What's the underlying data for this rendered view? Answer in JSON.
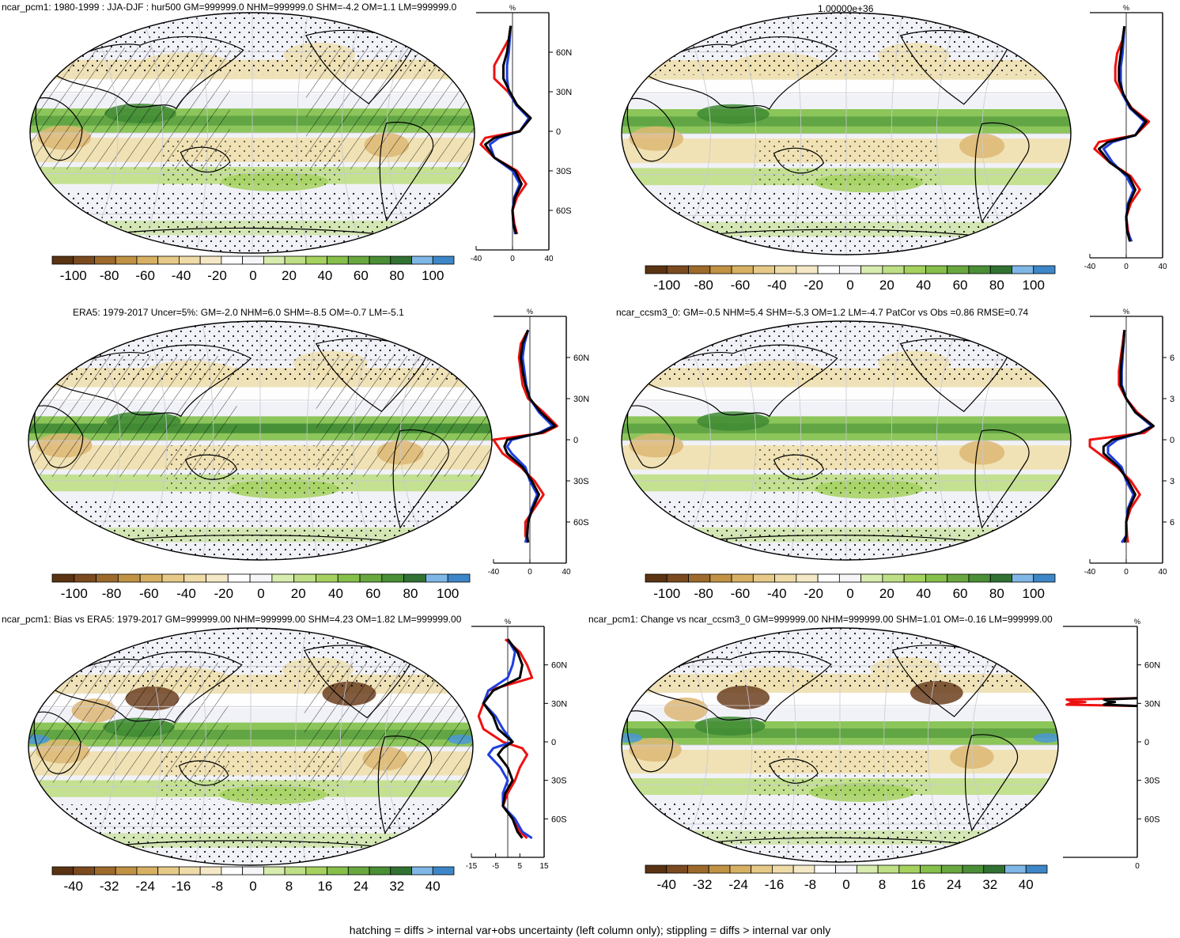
{
  "footnote": "hatching = diffs > internal var+obs uncertainty (left column only); stippling = diffs > internal var only",
  "palette": {
    "rh": [
      "#5a3412",
      "#7c4a1f",
      "#9e6a2c",
      "#c19243",
      "#d7b064",
      "#e6c887",
      "#efdba8",
      "#f4e8c6",
      "#ffffff",
      "#f6f6f9",
      "#d7ecae",
      "#bfdf86",
      "#a5d15f",
      "#86bf4a",
      "#68a83f",
      "#4a8e36",
      "#317233",
      "#7fb7e6",
      "#3d86c8"
    ],
    "map_cool": "#f1f1f8",
    "mid_green": "#8cc55a",
    "dark_green": "#3f8a34",
    "light_tan": "#efe0b0",
    "mid_tan": "#ddb774",
    "dark_brown": "#6b4020",
    "blue_patch": "#4b96d8",
    "line_red": "#ee1111",
    "line_blue": "#1f3fe0",
    "line_black": "#000000"
  },
  "chart_data": [
    {
      "type": "heatmap",
      "title": "ncar_pcm1: 1980-1999 : JJA-DJF : hur500 GM=999999.0 NHM=999999.0 SHM=-4.2 OM=1.1 LM=999999.0",
      "colorbar": {
        "labels": [
          "-100",
          "-80",
          "-60",
          "-40",
          "-20",
          "0",
          "20",
          "40",
          "60",
          "80",
          "100"
        ],
        "range": [
          -100,
          100
        ]
      },
      "zonal_profile": {
        "unit": "%",
        "xlim": [
          -40,
          40
        ],
        "xticks": [
          "-40",
          "0",
          "40"
        ],
        "yticks": [
          "60N",
          "30N",
          "0",
          "30S",
          "60S"
        ],
        "series": [
          {
            "color": "#ee1111",
            "lat": [
              80,
              70,
              60,
              50,
              40,
              30,
              20,
              10,
              0,
              -5,
              -10,
              -20,
              -30,
              -40,
              -50,
              -60,
              -70,
              -78
            ],
            "val": [
              -2,
              -4,
              -12,
              -20,
              -20,
              -5,
              5,
              20,
              8,
              -30,
              -35,
              -20,
              5,
              15,
              5,
              0,
              2,
              5
            ]
          },
          {
            "color": "#1f3fe0",
            "lat": [
              80,
              70,
              60,
              50,
              40,
              30,
              20,
              10,
              0,
              -5,
              -10,
              -20,
              -30,
              -40,
              -50,
              -60,
              -70,
              -78
            ],
            "val": [
              -2,
              -3,
              -4,
              -6,
              -6,
              -4,
              4,
              18,
              8,
              -15,
              -25,
              -20,
              0,
              8,
              2,
              0,
              1,
              3
            ]
          },
          {
            "color": "#000000",
            "lat": [
              80,
              70,
              60,
              50,
              40,
              30,
              20,
              10,
              0,
              -5,
              -10,
              -20,
              -30,
              -40,
              -50,
              -60,
              -70,
              -78
            ],
            "val": [
              -2,
              -4,
              -6,
              -10,
              -10,
              -3,
              5,
              20,
              8,
              -20,
              -30,
              -20,
              3,
              10,
              3,
              0,
              1,
              4
            ]
          }
        ]
      }
    },
    {
      "type": "heatmap",
      "title": "1.00000e+36",
      "colorbar": {
        "labels": [
          "-100",
          "-80",
          "-60",
          "-40",
          "-20",
          "0",
          "20",
          "40",
          "60",
          "80",
          "100"
        ],
        "range": [
          -100,
          100
        ]
      },
      "zonal_profile": {
        "unit": "%",
        "xlim": [
          -40,
          40
        ],
        "xticks": [
          "-40",
          "0",
          "40"
        ],
        "yticks": [],
        "series": [
          {
            "color": "#ee1111",
            "lat": [
              80,
              70,
              60,
              50,
              40,
              30,
              20,
              10,
              0,
              -5,
              -10,
              -20,
              -30,
              -40,
              -50,
              -60,
              -70,
              -78
            ],
            "val": [
              -2,
              -4,
              -10,
              -12,
              -12,
              -4,
              6,
              25,
              10,
              -30,
              -35,
              -18,
              5,
              15,
              5,
              0,
              2,
              5
            ]
          },
          {
            "color": "#1f3fe0",
            "lat": [
              80,
              70,
              60,
              50,
              40,
              30,
              20,
              10,
              0,
              -5,
              -10,
              -20,
              -30,
              -40,
              -50,
              -60,
              -70,
              -78
            ],
            "val": [
              -2,
              -3,
              -4,
              -6,
              -6,
              -4,
              4,
              20,
              10,
              -15,
              -25,
              -15,
              0,
              8,
              2,
              0,
              1,
              6
            ]
          },
          {
            "color": "#000000",
            "lat": [
              80,
              70,
              60,
              50,
              40,
              30,
              20,
              10,
              0,
              -5,
              -10,
              -20,
              -30,
              -40,
              -50,
              -60,
              -70,
              -78
            ],
            "val": [
              -2,
              -4,
              -6,
              -8,
              -8,
              -3,
              5,
              22,
              10,
              -20,
              -30,
              -18,
              3,
              10,
              3,
              0,
              1,
              4
            ]
          }
        ]
      }
    },
    {
      "type": "heatmap",
      "title": "ERA5: 1979-2017 Uncer=5%: GM=-2.0 NHM=6.0 SHM=-8.5 OM=-0.7 LM=-5.1",
      "colorbar": {
        "labels": [
          "-100",
          "-80",
          "-60",
          "-40",
          "-20",
          "0",
          "20",
          "40",
          "60",
          "80",
          "100"
        ],
        "range": [
          -100,
          100
        ]
      },
      "zonal_profile": {
        "unit": "%",
        "xlim": [
          -40,
          40
        ],
        "xticks": [
          "-40",
          "0",
          "40"
        ],
        "yticks": [
          "60N",
          "30N",
          "0",
          "30S",
          "60S"
        ],
        "series": [
          {
            "color": "#ee1111",
            "lat": [
              80,
              70,
              60,
              50,
              40,
              30,
              20,
              10,
              5,
              0,
              -5,
              -10,
              -20,
              -30,
              -40,
              -50,
              -60,
              -70,
              -75
            ],
            "val": [
              -2,
              -10,
              -12,
              -10,
              -8,
              -2,
              15,
              30,
              15,
              -40,
              -35,
              -30,
              -10,
              5,
              15,
              5,
              -5,
              -5,
              -2
            ]
          },
          {
            "color": "#1f3fe0",
            "lat": [
              80,
              70,
              60,
              50,
              40,
              30,
              20,
              10,
              5,
              0,
              -5,
              -10,
              -20,
              -30,
              -40,
              -50,
              -60,
              -70,
              -75
            ],
            "val": [
              -2,
              -6,
              -8,
              -6,
              -4,
              0,
              10,
              25,
              10,
              -20,
              -25,
              -20,
              -5,
              0,
              8,
              2,
              -2,
              -3,
              -5
            ]
          },
          {
            "color": "#000000",
            "lat": [
              80,
              70,
              60,
              50,
              40,
              30,
              20,
              10,
              5,
              0,
              -5,
              -10,
              -20,
              -30,
              -40,
              -50,
              -60,
              -70,
              -75
            ],
            "val": [
              -2,
              -8,
              -10,
              -8,
              -5,
              0,
              12,
              28,
              12,
              -25,
              -28,
              -25,
              -8,
              2,
              10,
              3,
              -2,
              -3,
              -2
            ]
          }
        ]
      }
    },
    {
      "type": "heatmap",
      "title": "ncar_ccsm3_0: GM=-0.5 NHM=5.4 SHM=-5.3 OM=1.2 LM=-4.7 PatCor vs Obs =0.86 RMSE=0.74",
      "colorbar": {
        "labels": [
          "-100",
          "-80",
          "-60",
          "-40",
          "-20",
          "0",
          "20",
          "40",
          "60",
          "80",
          "100"
        ],
        "range": [
          -100,
          100
        ]
      },
      "zonal_profile": {
        "unit": "%",
        "xlim": [
          -40,
          40
        ],
        "xticks": [
          "-40",
          "0",
          "40"
        ],
        "yticks": [
          "6",
          "3",
          "0",
          "3",
          "6"
        ],
        "series": [
          {
            "color": "#ee1111",
            "lat": [
              80,
              70,
              60,
              50,
              40,
              30,
              20,
              10,
              5,
              0,
              -5,
              -10,
              -20,
              -30,
              -40,
              -50,
              -60,
              -70,
              -75
            ],
            "val": [
              -2,
              -4,
              -6,
              -8,
              -8,
              0,
              12,
              30,
              20,
              -40,
              -40,
              -30,
              -10,
              5,
              15,
              5,
              0,
              1,
              2
            ]
          },
          {
            "color": "#1f3fe0",
            "lat": [
              80,
              70,
              60,
              50,
              40,
              30,
              20,
              10,
              5,
              0,
              -5,
              -10,
              -20,
              -30,
              -40,
              -50,
              -60,
              -70,
              -75
            ],
            "val": [
              -2,
              -3,
              -4,
              -5,
              -5,
              0,
              10,
              28,
              15,
              -10,
              -20,
              -20,
              -5,
              0,
              8,
              2,
              0,
              0,
              -5
            ]
          },
          {
            "color": "#000000",
            "lat": [
              80,
              70,
              60,
              50,
              40,
              30,
              20,
              10,
              5,
              0,
              -5,
              -10,
              -20,
              -30,
              -40,
              -50,
              -60,
              -70,
              -75
            ],
            "val": [
              -2,
              -3,
              -5,
              -6,
              -6,
              0,
              10,
              30,
              15,
              -15,
              -25,
              -25,
              -8,
              2,
              10,
              3,
              0,
              0,
              -2
            ]
          }
        ]
      }
    },
    {
      "type": "heatmap",
      "title": "ncar_pcm1: Bias vs ERA5: 1979-2017 GM=999999.00 NHM=999999.00 SHM=4.23 OM=1.82 LM=999999.00",
      "colorbar": {
        "labels": [
          "-40",
          "-32",
          "-24",
          "-16",
          "-8",
          "0",
          "8",
          "16",
          "24",
          "32",
          "40"
        ],
        "range": [
          -40,
          40
        ]
      },
      "zonal_profile": {
        "unit": "%",
        "xlim": [
          -15,
          15
        ],
        "xticks": [
          "-15",
          "-5",
          "5",
          "15"
        ],
        "yticks": [
          "60N",
          "30N",
          "0",
          "30S",
          "60S"
        ],
        "series": [
          {
            "color": "#ee1111",
            "lat": [
              80,
              70,
              60,
              50,
              40,
              30,
              20,
              10,
              0,
              -5,
              -10,
              -20,
              -30,
              -40,
              -50,
              -60,
              -70,
              -75
            ],
            "val": [
              -1,
              5,
              8,
              10,
              -8,
              -10,
              -12,
              -10,
              -2,
              6,
              8,
              5,
              3,
              0,
              -2,
              2,
              5,
              8
            ]
          },
          {
            "color": "#1f3fe0",
            "lat": [
              80,
              70,
              60,
              50,
              40,
              30,
              20,
              10,
              0,
              -5,
              -10,
              -20,
              -30,
              -40,
              -50,
              -60,
              -70,
              -75
            ],
            "val": [
              0,
              3,
              2,
              0,
              -8,
              -10,
              -5,
              -2,
              2,
              -6,
              -8,
              -3,
              0,
              -2,
              -2,
              3,
              6,
              10
            ]
          },
          {
            "color": "#000000",
            "lat": [
              80,
              70,
              60,
              50,
              40,
              30,
              20,
              10,
              0,
              -5,
              -10,
              -20,
              -30,
              -40,
              -50,
              -60,
              -70,
              -75
            ],
            "val": [
              0,
              4,
              6,
              5,
              -6,
              -10,
              -6,
              -4,
              2,
              -2,
              -4,
              0,
              2,
              -1,
              -2,
              2,
              4,
              6
            ]
          }
        ]
      }
    },
    {
      "type": "heatmap",
      "title": "ncar_pcm1: Change vs ncar_ccsm3_0 GM=999999.00 NHM=999999.00 SHM=1.01 OM=-0.16 LM=999999.00",
      "colorbar": {
        "labels": [
          "-40",
          "-32",
          "-24",
          "-16",
          "-8",
          "0",
          "8",
          "16",
          "24",
          "32",
          "40"
        ],
        "range": [
          -40,
          40
        ]
      },
      "zonal_profile": {
        "unit": "%",
        "xlim": [
          -1,
          0
        ],
        "xticks": [
          "0"
        ],
        "yticks": [
          "60N",
          "30N",
          "0",
          "30S",
          "60S"
        ],
        "series": [
          {
            "color": "#ee1111",
            "lat": [
              34,
              33,
              32,
              31,
              30,
              29,
              28
            ],
            "val": [
              0,
              -0.95,
              -0.9,
              -0.7,
              -0.9,
              -0.95,
              0
            ]
          },
          {
            "color": "#000000",
            "lat": [
              34,
              33,
              32,
              31,
              30,
              29,
              28
            ],
            "val": [
              0,
              -0.45,
              -0.4,
              -0.3,
              -0.4,
              -0.45,
              0
            ]
          }
        ]
      }
    }
  ]
}
